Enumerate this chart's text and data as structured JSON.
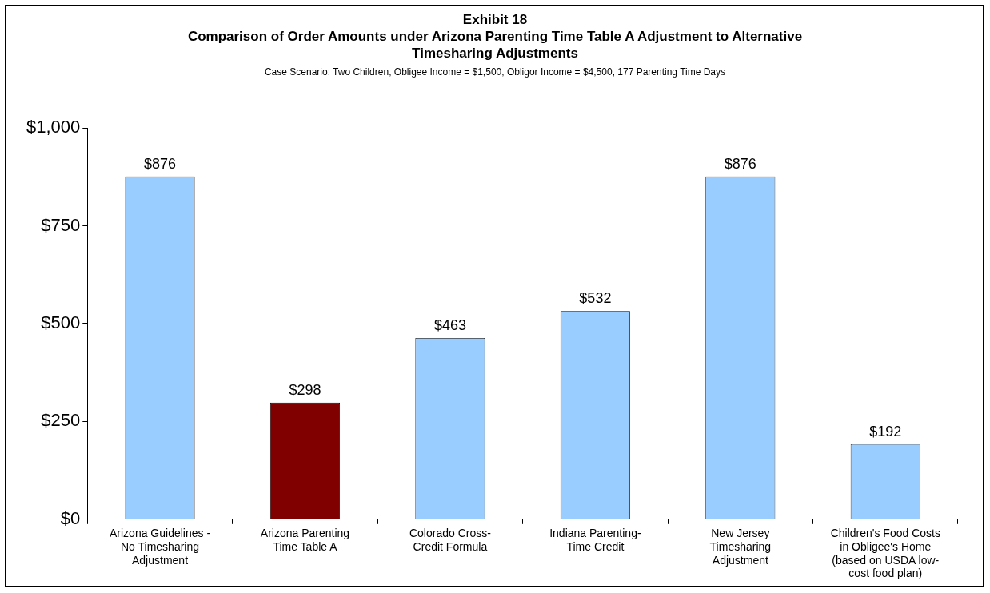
{
  "chart_data": {
    "type": "bar",
    "title": "Exhibit 18\nComparison of Order Amounts under Arizona Parenting Time Table A Adjustment to Alternative Timesharing Adjustments",
    "subtitle": "Case Scenario: Two Children, Obligee Income = $1,500, Obligor Income = $4,500, 177 Parenting Time Days",
    "categories": [
      "Arizona Guidelines - No Timesharing Adjustment",
      "Arizona Parenting Time Table A",
      "Colorado Cross-Credit Formula",
      "Indiana Parenting-Time Credit",
      "New Jersey Timesharing Adjustment",
      "Children's Food Costs in Obligee's Home (based on USDA low-cost food plan)"
    ],
    "values": [
      876,
      298,
      463,
      532,
      876,
      192
    ],
    "value_labels": [
      "$876",
      "$298",
      "$463",
      "$532",
      "$876",
      "$192"
    ],
    "colors": [
      "#99ccff",
      "#800000",
      "#99ccff",
      "#99ccff",
      "#99ccff",
      "#99ccff"
    ],
    "ylim": [
      0,
      1000
    ],
    "yticks": [
      {
        "value": 0,
        "label": "$0"
      },
      {
        "value": 250,
        "label": "$250"
      },
      {
        "value": 500,
        "label": "$500"
      },
      {
        "value": 750,
        "label": "$750"
      },
      {
        "value": 1000,
        "label": "$1,000"
      }
    ],
    "grid": false,
    "legend": false
  }
}
